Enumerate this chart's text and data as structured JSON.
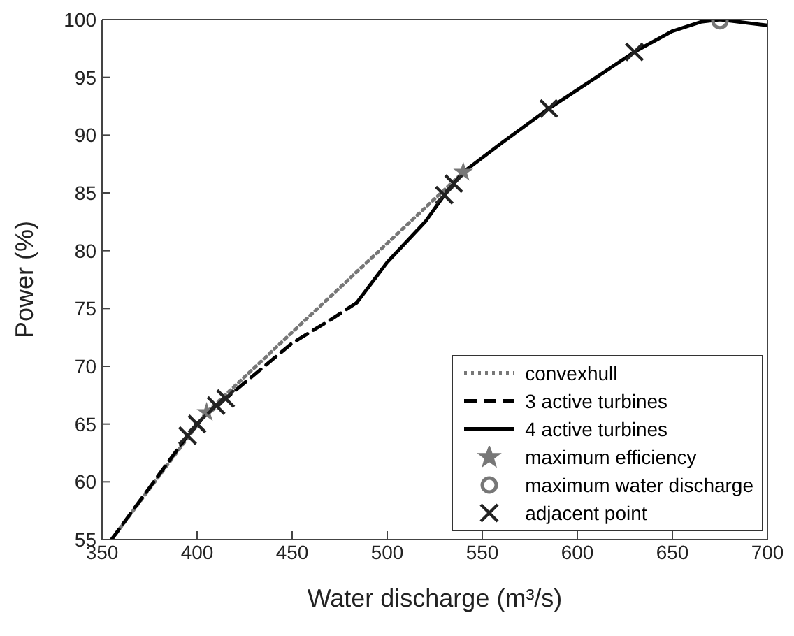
{
  "chart_data": {
    "type": "line",
    "xlabel": "Water discharge (m³/s)",
    "ylabel": "Power (%)",
    "xlim": [
      350,
      700
    ],
    "ylim": [
      55,
      100
    ],
    "xticks": [
      350,
      400,
      450,
      500,
      550,
      600,
      650,
      700
    ],
    "yticks": [
      55,
      60,
      65,
      70,
      75,
      80,
      85,
      90,
      95,
      100
    ],
    "legend": "bottom right",
    "series": [
      {
        "name": "convexhull",
        "line_style": "dotted",
        "color": "#777777",
        "x": [
          355,
          405,
          540
        ],
        "values": [
          55,
          66,
          86.8
        ]
      },
      {
        "name": "3 active turbines",
        "line_style": "dashed",
        "color": "#000000",
        "x": [
          355,
          395,
          400,
          405,
          410,
          415,
          450,
          470,
          484
        ],
        "values": [
          55,
          64,
          65,
          65.8,
          66.6,
          67.2,
          72,
          74,
          75.5
        ]
      },
      {
        "name": "4 active turbines",
        "line_style": "solid",
        "color": "#000000",
        "x": [
          484,
          500,
          520,
          530,
          535,
          540,
          560,
          585,
          610,
          630,
          650,
          665,
          675,
          690,
          700
        ],
        "values": [
          75.5,
          79,
          82.5,
          84.8,
          85.8,
          86.8,
          89.3,
          92.3,
          95,
          97.2,
          99,
          99.8,
          100,
          99.7,
          99.5
        ]
      },
      {
        "name": "maximum efficiency",
        "type": "scatter",
        "marker": "star",
        "color": "#777777",
        "x": [
          405,
          540
        ],
        "values": [
          66,
          86.8
        ]
      },
      {
        "name": "maximum water discharge",
        "type": "scatter",
        "marker": "circle",
        "color": "#777777",
        "x": [
          675
        ],
        "values": [
          99.9
        ]
      },
      {
        "name": "adjacent point",
        "type": "scatter",
        "marker": "cross",
        "color": "#222222",
        "x": [
          395,
          400,
          410,
          415,
          530,
          535,
          585,
          630
        ],
        "values": [
          64,
          65,
          66.6,
          67.2,
          84.8,
          85.8,
          92.3,
          97.2
        ]
      }
    ]
  }
}
